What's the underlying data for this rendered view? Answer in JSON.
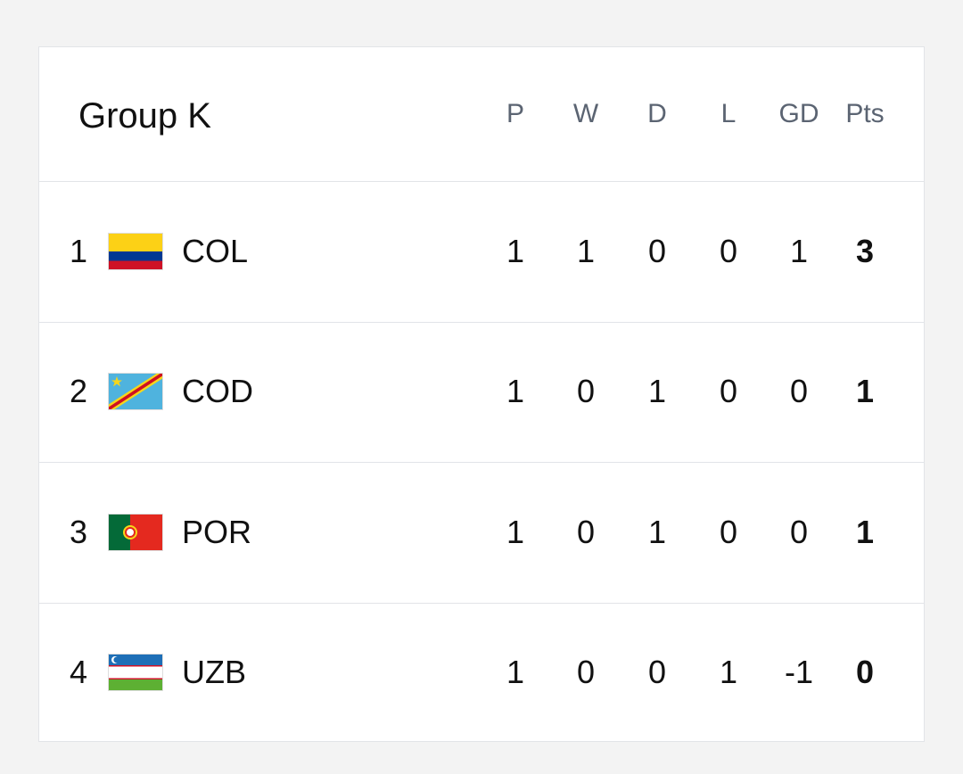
{
  "title": "Group K",
  "columns": [
    "P",
    "W",
    "D",
    "L",
    "GD",
    "Pts"
  ],
  "rows": [
    {
      "rank": 1,
      "team": "COL",
      "stats": [
        1,
        1,
        0,
        0,
        1,
        3
      ]
    },
    {
      "rank": 2,
      "team": "COD",
      "stats": [
        1,
        0,
        1,
        0,
        0,
        1
      ]
    },
    {
      "rank": 3,
      "team": "POR",
      "stats": [
        1,
        0,
        1,
        0,
        0,
        1
      ]
    },
    {
      "rank": 4,
      "team": "UZB",
      "stats": [
        1,
        0,
        0,
        1,
        -1,
        0
      ]
    }
  ]
}
